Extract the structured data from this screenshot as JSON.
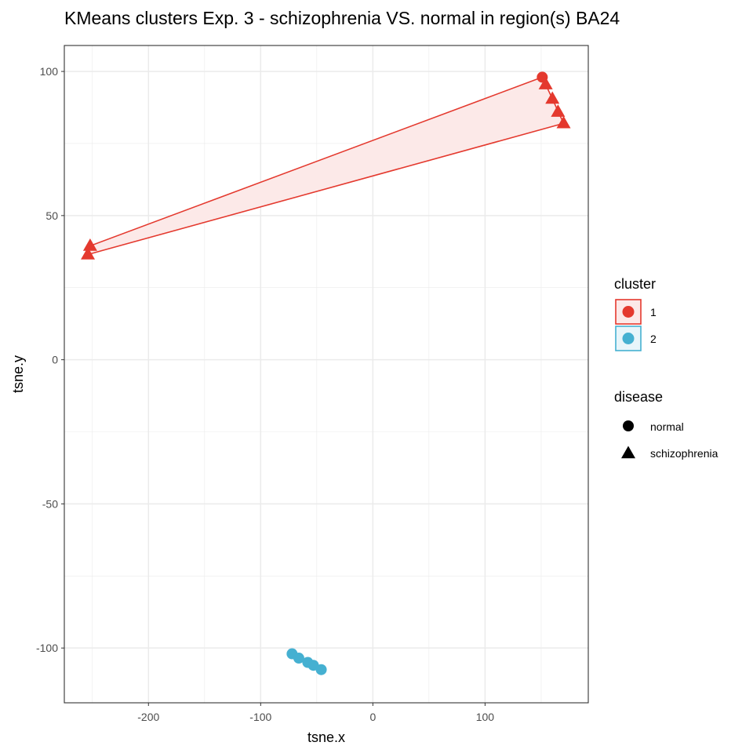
{
  "chart_data": {
    "type": "scatter",
    "title": "KMeans clusters Exp. 3 - schizophrenia VS. normal in region(s) BA24",
    "xlabel": "tsne.x",
    "ylabel": "tsne.y",
    "xlim": [
      -275,
      192
    ],
    "ylim": [
      -119,
      109
    ],
    "x_ticks": [
      -200,
      -100,
      0,
      100
    ],
    "y_ticks": [
      -100,
      -50,
      0,
      50,
      100
    ],
    "x_tick_labels": [
      "-200",
      "-100",
      "0",
      "100"
    ],
    "y_tick_labels": [
      "-100",
      "-50",
      "0",
      "50",
      "100"
    ],
    "grid": true,
    "legend_position": "right",
    "clusters": [
      {
        "name": "1",
        "color": "#E4392E",
        "fill": "#FCE9E8",
        "hull": true
      },
      {
        "name": "2",
        "color": "#45B0D1",
        "fill": "#E8F5FA",
        "hull": false
      }
    ],
    "shapes": [
      {
        "name": "normal",
        "shape": "circle"
      },
      {
        "name": "schizophrenia",
        "shape": "triangle"
      }
    ],
    "points": [
      {
        "x": 151,
        "y": 98,
        "cluster": "1",
        "disease": "normal"
      },
      {
        "x": 154,
        "y": 95.5,
        "cluster": "1",
        "disease": "schizophrenia"
      },
      {
        "x": 160,
        "y": 90.5,
        "cluster": "1",
        "disease": "schizophrenia"
      },
      {
        "x": 165,
        "y": 86,
        "cluster": "1",
        "disease": "schizophrenia"
      },
      {
        "x": 170,
        "y": 82,
        "cluster": "1",
        "disease": "schizophrenia"
      },
      {
        "x": -252,
        "y": 39.5,
        "cluster": "1",
        "disease": "schizophrenia"
      },
      {
        "x": -254,
        "y": 36.5,
        "cluster": "1",
        "disease": "schizophrenia"
      },
      {
        "x": -72,
        "y": -102,
        "cluster": "2",
        "disease": "normal"
      },
      {
        "x": -66,
        "y": -103.5,
        "cluster": "2",
        "disease": "normal"
      },
      {
        "x": -58,
        "y": -105,
        "cluster": "2",
        "disease": "normal"
      },
      {
        "x": -53,
        "y": -106,
        "cluster": "2",
        "disease": "normal"
      },
      {
        "x": -46,
        "y": -107.5,
        "cluster": "2",
        "disease": "normal"
      }
    ],
    "legends": {
      "cluster_title": "cluster",
      "disease_title": "disease"
    }
  }
}
